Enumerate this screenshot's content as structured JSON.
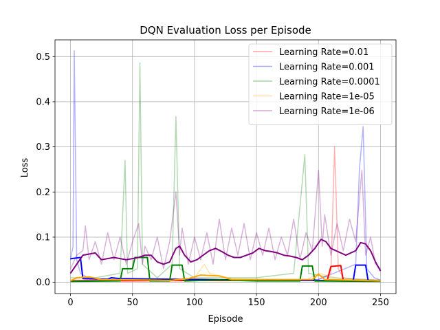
{
  "chart_data": {
    "type": "line",
    "title": "DQN Evaluation Loss per Episode",
    "xlabel": "Episode",
    "ylabel": "Loss",
    "xlim": [
      -12.5,
      262.5
    ],
    "ylim": [
      -0.025,
      0.537
    ],
    "xticks": [
      0,
      50,
      100,
      150,
      200,
      250
    ],
    "yticks": [
      0.0,
      0.1,
      0.2,
      0.3,
      0.4,
      0.5
    ],
    "xtick_labels": [
      "0",
      "50",
      "100",
      "150",
      "200",
      "250"
    ],
    "ytick_labels": [
      "0.0",
      "0.1",
      "0.2",
      "0.3",
      "0.4",
      "0.5"
    ],
    "grid": true,
    "legend_position": "upper-right",
    "series": [
      {
        "name": "Learning Rate=0.01",
        "color": "#ff0000",
        "raw_points": [
          [
            0,
            0.004
          ],
          [
            20,
            0.005
          ],
          [
            40,
            0.006
          ],
          [
            60,
            0.004
          ],
          [
            80,
            0.007
          ],
          [
            100,
            0.008
          ],
          [
            120,
            0.006
          ],
          [
            140,
            0.005
          ],
          [
            160,
            0.006
          ],
          [
            180,
            0.005
          ],
          [
            200,
            0.006
          ],
          [
            210,
            0.02
          ],
          [
            213,
            0.3
          ],
          [
            216,
            0.03
          ],
          [
            220,
            0.01
          ],
          [
            230,
            0.006
          ],
          [
            250,
            0.004
          ]
        ],
        "avg_points": [
          [
            0,
            0.003
          ],
          [
            100,
            0.004
          ],
          [
            200,
            0.004
          ],
          [
            207,
            0.004
          ],
          [
            210,
            0.035
          ],
          [
            218,
            0.037
          ],
          [
            220,
            0.004
          ],
          [
            250,
            0.003
          ]
        ]
      },
      {
        "name": "Learning Rate=0.001",
        "color": "#0000ff",
        "raw_points": [
          [
            0,
            0.05
          ],
          [
            2,
            0.08
          ],
          [
            3,
            0.513
          ],
          [
            5,
            0.05
          ],
          [
            8,
            0.02
          ],
          [
            15,
            0.008
          ],
          [
            30,
            0.006
          ],
          [
            60,
            0.005
          ],
          [
            100,
            0.006
          ],
          [
            150,
            0.005
          ],
          [
            200,
            0.006
          ],
          [
            230,
            0.04
          ],
          [
            233,
            0.25
          ],
          [
            236,
            0.345
          ],
          [
            239,
            0.03
          ],
          [
            245,
            0.01
          ],
          [
            250,
            0.005
          ]
        ],
        "avg_points": [
          [
            0,
            0.052
          ],
          [
            8,
            0.055
          ],
          [
            10,
            0.008
          ],
          [
            30,
            0.007
          ],
          [
            33,
            0.01
          ],
          [
            40,
            0.008
          ],
          [
            100,
            0.006
          ],
          [
            150,
            0.005
          ],
          [
            200,
            0.004
          ],
          [
            228,
            0.004
          ],
          [
            230,
            0.038
          ],
          [
            238,
            0.038
          ],
          [
            240,
            0.004
          ],
          [
            250,
            0.003
          ]
        ]
      },
      {
        "name": "Learning Rate=0.0001",
        "color": "#008000",
        "raw_points": [
          [
            0,
            0.01
          ],
          [
            20,
            0.01
          ],
          [
            40,
            0.02
          ],
          [
            44,
            0.27
          ],
          [
            46,
            0.02
          ],
          [
            54,
            0.03
          ],
          [
            56,
            0.486
          ],
          [
            58,
            0.04
          ],
          [
            70,
            0.01
          ],
          [
            82,
            0.04
          ],
          [
            85,
            0.367
          ],
          [
            88,
            0.03
          ],
          [
            100,
            0.01
          ],
          [
            150,
            0.01
          ],
          [
            180,
            0.02
          ],
          [
            189,
            0.283
          ],
          [
            192,
            0.02
          ],
          [
            210,
            0.01
          ],
          [
            250,
            0.005
          ]
        ],
        "avg_points": [
          [
            0,
            0.002
          ],
          [
            40,
            0.003
          ],
          [
            42,
            0.03
          ],
          [
            50,
            0.03
          ],
          [
            52,
            0.055
          ],
          [
            62,
            0.055
          ],
          [
            64,
            0.003
          ],
          [
            80,
            0.003
          ],
          [
            82,
            0.038
          ],
          [
            90,
            0.038
          ],
          [
            92,
            0.003
          ],
          [
            120,
            0.005
          ],
          [
            150,
            0.003
          ],
          [
            185,
            0.003
          ],
          [
            187,
            0.036
          ],
          [
            195,
            0.036
          ],
          [
            197,
            0.003
          ],
          [
            250,
            0.002
          ]
        ]
      },
      {
        "name": "Learning Rate=1e-05",
        "color": "#ffa500",
        "raw_points": [
          [
            0,
            0.005
          ],
          [
            10,
            0.012
          ],
          [
            20,
            0.008
          ],
          [
            40,
            0.006
          ],
          [
            60,
            0.004
          ],
          [
            80,
            0.006
          ],
          [
            100,
            0.01
          ],
          [
            108,
            0.04
          ],
          [
            112,
            0.02
          ],
          [
            130,
            0.008
          ],
          [
            160,
            0.006
          ],
          [
            190,
            0.005
          ],
          [
            200,
            0.02
          ],
          [
            220,
            0.006
          ],
          [
            250,
            0.004
          ]
        ],
        "avg_points": [
          [
            0,
            0.003
          ],
          [
            5,
            0.01
          ],
          [
            15,
            0.012
          ],
          [
            25,
            0.006
          ],
          [
            60,
            0.005
          ],
          [
            80,
            0.004
          ],
          [
            95,
            0.008
          ],
          [
            105,
            0.016
          ],
          [
            120,
            0.014
          ],
          [
            130,
            0.006
          ],
          [
            195,
            0.006
          ],
          [
            200,
            0.018
          ],
          [
            205,
            0.006
          ],
          [
            250,
            0.003
          ]
        ]
      },
      {
        "name": "Learning Rate=1e-06",
        "color": "#800080",
        "raw_points": [
          [
            0,
            0.03
          ],
          [
            5,
            0.06
          ],
          [
            10,
            0.07
          ],
          [
            12,
            0.125
          ],
          [
            15,
            0.05
          ],
          [
            20,
            0.09
          ],
          [
            25,
            0.04
          ],
          [
            30,
            0.11
          ],
          [
            35,
            0.05
          ],
          [
            40,
            0.1
          ],
          [
            45,
            0.04
          ],
          [
            50,
            0.09
          ],
          [
            55,
            0.13
          ],
          [
            58,
            0.04
          ],
          [
            60,
            0.08
          ],
          [
            65,
            0.05
          ],
          [
            70,
            0.1
          ],
          [
            75,
            0.03
          ],
          [
            80,
            0.09
          ],
          [
            85,
            0.2
          ],
          [
            88,
            0.06
          ],
          [
            90,
            0.12
          ],
          [
            95,
            0.04
          ],
          [
            100,
            0.1
          ],
          [
            105,
            0.05
          ],
          [
            110,
            0.11
          ],
          [
            115,
            0.04
          ],
          [
            120,
            0.14
          ],
          [
            125,
            0.05
          ],
          [
            130,
            0.12
          ],
          [
            135,
            0.06
          ],
          [
            140,
            0.13
          ],
          [
            145,
            0.05
          ],
          [
            150,
            0.11
          ],
          [
            155,
            0.06
          ],
          [
            160,
            0.12
          ],
          [
            165,
            0.05
          ],
          [
            170,
            0.1
          ],
          [
            175,
            0.06
          ],
          [
            180,
            0.14
          ],
          [
            185,
            0.05
          ],
          [
            190,
            0.11
          ],
          [
            195,
            0.07
          ],
          [
            200,
            0.248
          ],
          [
            203,
            0.08
          ],
          [
            205,
            0.15
          ],
          [
            210,
            0.06
          ],
          [
            215,
            0.13
          ],
          [
            220,
            0.07
          ],
          [
            225,
            0.14
          ],
          [
            230,
            0.09
          ],
          [
            235,
            0.248
          ],
          [
            238,
            0.06
          ],
          [
            242,
            0.1
          ],
          [
            246,
            0.04
          ],
          [
            250,
            0.03
          ]
        ],
        "avg_points": [
          [
            0,
            0.02
          ],
          [
            5,
            0.04
          ],
          [
            10,
            0.06
          ],
          [
            20,
            0.065
          ],
          [
            25,
            0.05
          ],
          [
            35,
            0.055
          ],
          [
            45,
            0.05
          ],
          [
            55,
            0.055
          ],
          [
            60,
            0.06
          ],
          [
            65,
            0.06
          ],
          [
            70,
            0.045
          ],
          [
            75,
            0.04
          ],
          [
            80,
            0.045
          ],
          [
            85,
            0.075
          ],
          [
            88,
            0.08
          ],
          [
            92,
            0.06
          ],
          [
            97,
            0.045
          ],
          [
            102,
            0.05
          ],
          [
            107,
            0.06
          ],
          [
            112,
            0.07
          ],
          [
            117,
            0.075
          ],
          [
            122,
            0.068
          ],
          [
            127,
            0.06
          ],
          [
            132,
            0.055
          ],
          [
            137,
            0.055
          ],
          [
            142,
            0.06
          ],
          [
            147,
            0.065
          ],
          [
            152,
            0.075
          ],
          [
            157,
            0.07
          ],
          [
            162,
            0.068
          ],
          [
            167,
            0.065
          ],
          [
            172,
            0.06
          ],
          [
            177,
            0.058
          ],
          [
            182,
            0.055
          ],
          [
            187,
            0.05
          ],
          [
            192,
            0.06
          ],
          [
            197,
            0.075
          ],
          [
            202,
            0.095
          ],
          [
            206,
            0.09
          ],
          [
            210,
            0.075
          ],
          [
            214,
            0.07
          ],
          [
            218,
            0.065
          ],
          [
            222,
            0.06
          ],
          [
            226,
            0.065
          ],
          [
            230,
            0.07
          ],
          [
            234,
            0.088
          ],
          [
            238,
            0.085
          ],
          [
            242,
            0.07
          ],
          [
            246,
            0.045
          ],
          [
            250,
            0.025
          ]
        ]
      }
    ]
  }
}
